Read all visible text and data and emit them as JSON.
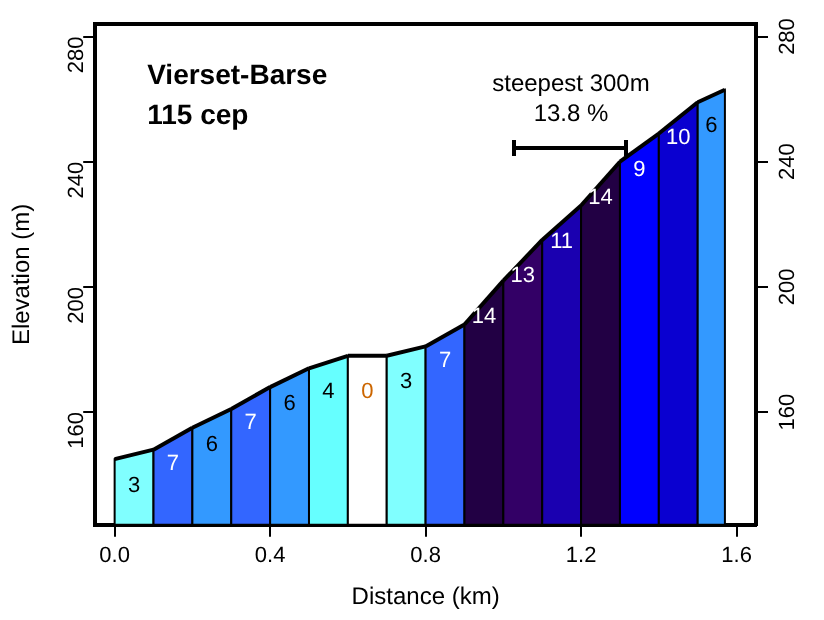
{
  "chart_data": {
    "type": "area",
    "title": "Vierset-Barse",
    "subtitle": "115 cep",
    "xlabel": "Distance (km)",
    "ylabel": "Elevation (m)",
    "series": [
      {
        "color": "#80ffff",
        "x": [
          0,
          0.1
        ],
        "values": [
          145,
          148
        ]
      },
      {
        "color": "#3366ff",
        "x": [
          0.1,
          0.2
        ],
        "values": [
          148,
          155
        ]
      },
      {
        "color": "#3399ff",
        "x": [
          0.2,
          0.3
        ],
        "values": [
          155,
          161
        ]
      },
      {
        "color": "#3366ff",
        "x": [
          0.3,
          0.4
        ],
        "values": [
          161,
          168
        ]
      },
      {
        "color": "#3399ff",
        "x": [
          0.4,
          0.5
        ],
        "values": [
          168,
          174
        ]
      },
      {
        "color": "#66ffff",
        "x": [
          0.5,
          0.6
        ],
        "values": [
          174,
          178
        ]
      },
      {
        "color": "#ffffff",
        "x": [
          0.6,
          0.7
        ],
        "values": [
          178,
          178
        ]
      },
      {
        "color": "#80ffff",
        "x": [
          0.7,
          0.8
        ],
        "values": [
          178,
          181
        ]
      },
      {
        "color": "#3366ff",
        "x": [
          0.8,
          0.9
        ],
        "values": [
          181,
          188
        ]
      },
      {
        "color": "#220044",
        "x": [
          0.9,
          1.0
        ],
        "values": [
          188,
          202
        ]
      },
      {
        "color": "#330066",
        "x": [
          1.0,
          1.1
        ],
        "values": [
          202,
          215
        ]
      },
      {
        "color": "#1a00b0",
        "x": [
          1.1,
          1.2
        ],
        "values": [
          215,
          226
        ]
      },
      {
        "color": "#220044",
        "x": [
          1.2,
          1.3
        ],
        "values": [
          226,
          240
        ]
      },
      {
        "color": "#0000ff",
        "x": [
          1.3,
          1.4
        ],
        "values": [
          240,
          249
        ]
      },
      {
        "color": "#0a00d0",
        "x": [
          1.4,
          1.5
        ],
        "values": [
          249,
          259
        ]
      },
      {
        "color": "#3399ff",
        "x": [
          1.5,
          1.57
        ],
        "values": [
          259,
          263
        ]
      }
    ],
    "annotations": [
      "3",
      "7",
      "6",
      "7",
      "6",
      "4",
      "0",
      "3",
      "7",
      "14",
      "13",
      "11",
      "14",
      "9",
      "10",
      "6",
      "steepest 300m",
      "13.8 %"
    ],
    "xlim": [
      -0.05,
      1.65
    ],
    "xticks": [
      {
        "value": 0,
        "label": "0.0"
      },
      {
        "value": 0.4,
        "label": "0.4"
      },
      {
        "value": 0.8,
        "label": "0.8"
      },
      {
        "value": 1.2,
        "label": "1.2"
      },
      {
        "value": 1.6,
        "label": "1.6"
      }
    ],
    "ylim": [
      124,
      284
    ],
    "yticks": [
      160,
      200,
      240,
      280
    ],
    "y2lim": [
      124,
      284
    ],
    "y2ticks": [
      160,
      200,
      240,
      280
    ],
    "grid": false,
    "legend": false,
    "marker": "none"
  }
}
